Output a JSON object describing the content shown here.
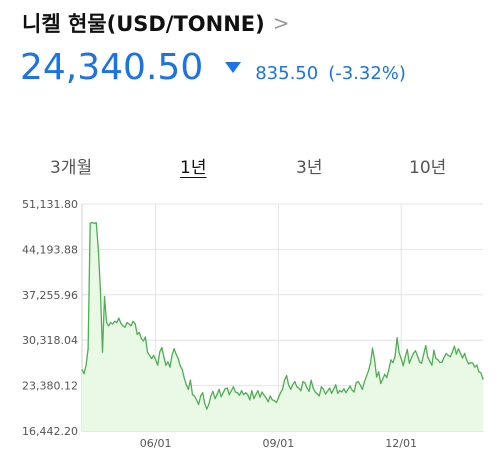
{
  "header": {
    "title": "니켈 현물(USD/TONNE)",
    "chevron": ">"
  },
  "quote": {
    "price": "24,340.50",
    "direction_icon": "down-triangle-icon",
    "change": "835.50",
    "change_pct": "(-3.32%)",
    "color": "#1a73e8"
  },
  "tabs": [
    {
      "label": "3개월",
      "active": false
    },
    {
      "label": "1년",
      "active": true
    },
    {
      "label": "3년",
      "active": false
    },
    {
      "label": "10년",
      "active": false
    }
  ],
  "chart_data": {
    "type": "area",
    "line_color": "#4caf50",
    "fill_color": "#eaf8e6",
    "y_ticks": [
      "51,131.80",
      "44,193.88",
      "37,255.96",
      "30,318.04",
      "23,380.12",
      "16,442.20"
    ],
    "ylim": [
      16442.2,
      51131.8
    ],
    "x_ticks": [
      {
        "label": "06/01",
        "index": 36
      },
      {
        "label": "09/01",
        "index": 96
      },
      {
        "label": "12/01",
        "index": 156
      }
    ],
    "grid": true,
    "values": [
      25800,
      25200,
      26500,
      29000,
      48200,
      48300,
      48200,
      48250,
      44000,
      38000,
      28500,
      37000,
      33000,
      32500,
      33000,
      32800,
      33200,
      33000,
      33700,
      32900,
      32500,
      32300,
      33000,
      32800,
      32500,
      33200,
      32800,
      31200,
      31500,
      30600,
      30200,
      30800,
      28500,
      28000,
      27500,
      28000,
      27300,
      26500,
      28500,
      29200,
      27800,
      26500,
      27000,
      26200,
      28000,
      29000,
      28200,
      27500,
      26400,
      25800,
      24500,
      23500,
      22800,
      24200,
      22000,
      21800,
      21200,
      20500,
      21800,
      22300,
      20600,
      19800,
      20500,
      21800,
      22500,
      21400,
      22000,
      22800,
      21700,
      22300,
      22900,
      23000,
      22000,
      22600,
      23200,
      22400,
      22300,
      21900,
      22600,
      22000,
      22300,
      22000,
      21200,
      22600,
      21400,
      22000,
      22600,
      21600,
      22400,
      21900,
      21500,
      20900,
      21800,
      21200,
      21100,
      20800,
      21500,
      22300,
      22800,
      24200,
      24900,
      23500,
      22800,
      23500,
      24000,
      23200,
      23000,
      22600,
      24000,
      23800,
      23000,
      22500,
      24200,
      23000,
      22400,
      22100,
      21800,
      23200,
      22800,
      22100,
      22500,
      23000,
      22200,
      22800,
      23500,
      22200,
      22600,
      22400,
      22900,
      22300,
      22800,
      23300,
      22700,
      22400,
      23800,
      24000,
      23500,
      22800,
      23900,
      24800,
      25600,
      26800,
      29100,
      27300,
      24700,
      25500,
      23700,
      24400,
      25100,
      24600,
      25900,
      27300,
      26900,
      27800,
      30700,
      28400,
      27500,
      26400,
      27800,
      28900,
      26800,
      27600,
      28300,
      28700,
      27900,
      27000,
      26800,
      28200,
      29500,
      27700,
      27100,
      26500,
      28800,
      27500,
      27300,
      26900,
      27000,
      27700,
      28300,
      28000,
      27800,
      28500,
      29400,
      28200,
      29000,
      28300,
      27600,
      28300,
      27300,
      26700,
      26900,
      26800,
      26200,
      26500,
      25500,
      25300,
      24340
    ]
  }
}
